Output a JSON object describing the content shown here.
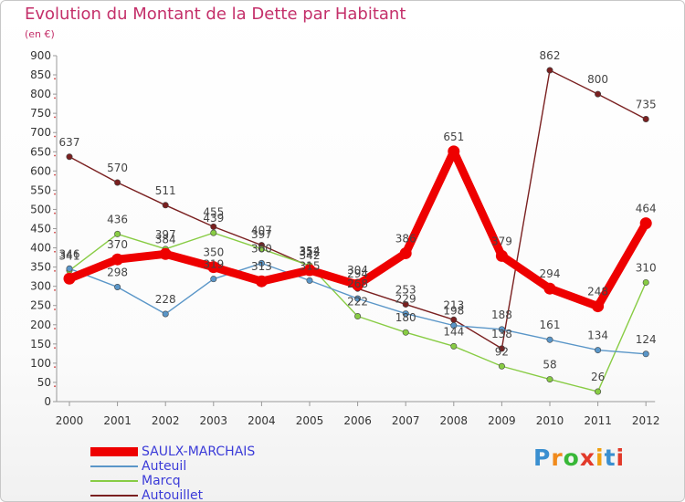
{
  "title": "Evolution du Montant de la Dette par Habitant",
  "subtitle": "(en €)",
  "chart_data": {
    "type": "line",
    "title": "Evolution du Montant de la Dette par Habitant",
    "subtitle": "(en €)",
    "categories": [
      "2000",
      "2001",
      "2002",
      "2003",
      "2004",
      "2005",
      "2006",
      "2007",
      "2008",
      "2009",
      "2010",
      "2011",
      "2012"
    ],
    "ylim": [
      0,
      900
    ],
    "yticks": [
      0,
      50,
      100,
      150,
      200,
      250,
      300,
      350,
      400,
      450,
      500,
      550,
      600,
      650,
      700,
      750,
      800,
      850,
      900
    ],
    "grid": false,
    "legend": "bottom-left",
    "series": [
      {
        "name": "SAULX-MARCHAIS",
        "color": "#ee0000",
        "values": [
          320,
          370,
          384,
          350,
          313,
          342,
          304,
          386,
          651,
          379,
          294,
          248,
          464
        ],
        "labels": [
          "",
          "370",
          "384",
          "350",
          "313",
          "342",
          "304",
          "386",
          "651",
          "379",
          "294",
          "248",
          "464"
        ]
      },
      {
        "name": "Auteuil",
        "color": "#5a96c8",
        "values": [
          346,
          298,
          228,
          319,
          360,
          315,
          268,
          229,
          198,
          188,
          161,
          134,
          124
        ],
        "labels": [
          "346",
          "298",
          "228",
          "319",
          "360",
          "315",
          "268",
          "229",
          "198",
          "188",
          "161",
          "134",
          "124"
        ]
      },
      {
        "name": "Marcq",
        "color": "#88cc44",
        "values": [
          341,
          436,
          397,
          439,
          397,
          354,
          222,
          180,
          144,
          92,
          58,
          26,
          310
        ],
        "labels": [
          "341",
          "436",
          "397",
          "439",
          "397",
          "354",
          "222",
          "180",
          "144",
          "92",
          "58",
          "26",
          "310"
        ]
      },
      {
        "name": "Autouillet",
        "color": "#7a2020",
        "values": [
          637,
          570,
          511,
          455,
          407,
          352,
          294,
          253,
          213,
          138,
          862,
          800,
          735
        ],
        "labels": [
          "637",
          "570",
          "511",
          "455",
          "407",
          "352",
          "294",
          "253",
          "213",
          "138",
          "862",
          "800",
          "735"
        ]
      }
    ]
  },
  "legend": {
    "items": [
      {
        "label": "SAULX-MARCHAIS",
        "color": "#ee0000"
      },
      {
        "label": "Auteuil",
        "color": "#5a96c8"
      },
      {
        "label": "Marcq",
        "color": "#88cc44"
      },
      {
        "label": "Autouillet",
        "color": "#7a2020"
      }
    ]
  },
  "logo": {
    "letters": [
      "P",
      "r",
      "o",
      "x",
      "i",
      "t",
      "i"
    ],
    "colors": [
      "#3a8fd0",
      "#f08a1c",
      "#38b838",
      "#e23a2a",
      "#f0a010",
      "#3a8fd0",
      "#e23a2a"
    ]
  }
}
